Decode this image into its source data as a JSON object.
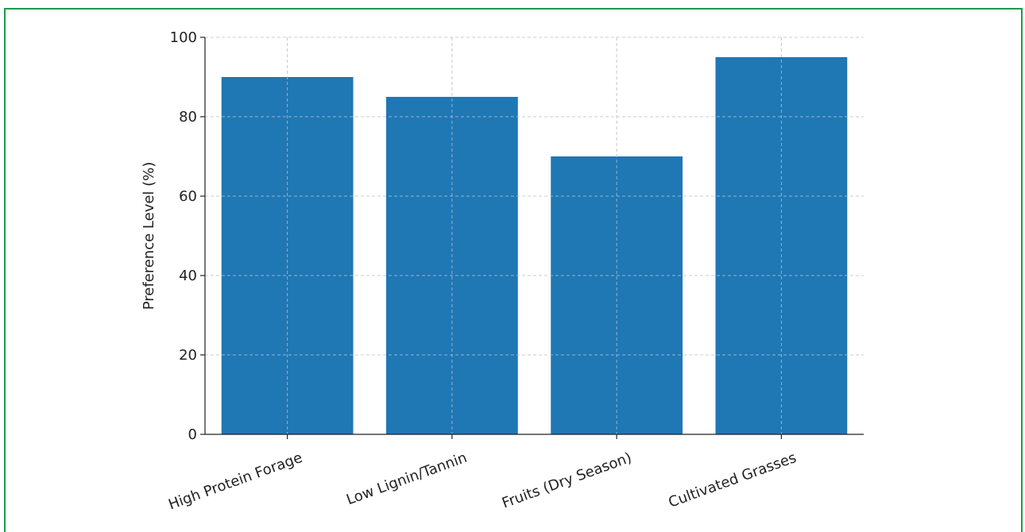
{
  "chart_data": {
    "type": "bar",
    "title": "",
    "xlabel": "",
    "ylabel": "Preference Level (%)",
    "categories": [
      "High Protein Forage",
      "Low Lignin/Tannin",
      "Fruits (Dry Season)",
      "Cultivated Grasses"
    ],
    "values": [
      90,
      85,
      70,
      95
    ],
    "ylim": [
      0,
      100
    ],
    "yticks": [
      0,
      20,
      40,
      60,
      80,
      100
    ],
    "grid": true,
    "bar_color": "#1f77b4",
    "grid_color": "#cccccc",
    "frame_color": "#1a9c4a"
  }
}
